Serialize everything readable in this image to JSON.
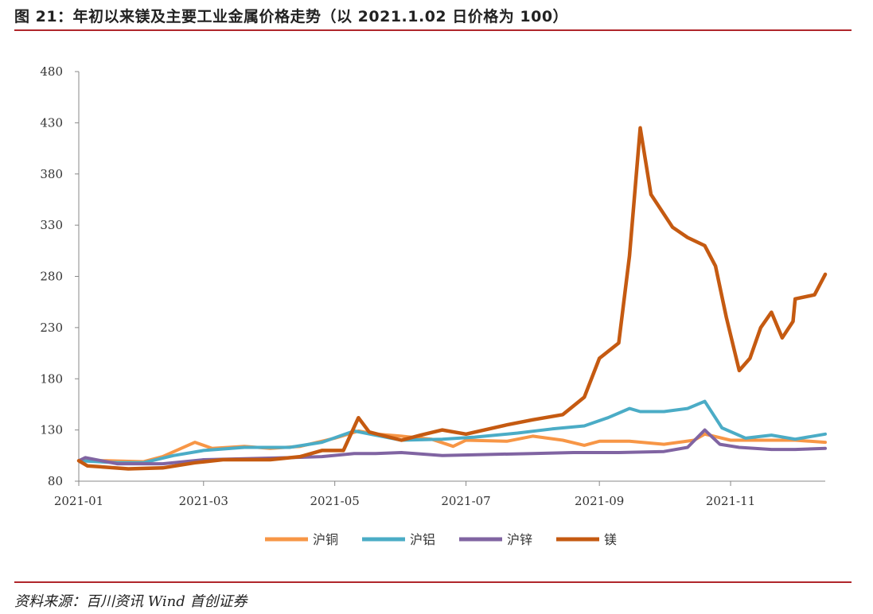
{
  "header": {
    "title": "图 21：年初以来镁及主要工业金属价格走势（以 2021.1.02 日价格为 100）"
  },
  "footer": {
    "source": "资料来源：百川资讯 Wind 首创证券"
  },
  "chart_data": {
    "type": "line",
    "title": "",
    "xlabel": "",
    "ylabel": "",
    "ylim": [
      80,
      480
    ],
    "yticks": [
      80,
      130,
      180,
      230,
      280,
      330,
      380,
      430,
      480
    ],
    "ytick_labels": [
      "80",
      "130",
      "180",
      "230",
      "280",
      "330",
      "380",
      "430",
      "480"
    ],
    "xlim": [
      "2021-01-02",
      "2021-12-15"
    ],
    "xticks": [
      "2021-01-02",
      "2021-03-01",
      "2021-05-01",
      "2021-07-01",
      "2021-09-01",
      "2021-11-01"
    ],
    "xtick_labels": [
      "2021-01",
      "2021-03",
      "2021-05",
      "2021-07",
      "2021-09",
      "2021-11"
    ],
    "legend_position": "bottom",
    "grid": false,
    "series": [
      {
        "name": "沪铜",
        "color": "#f79646",
        "points": [
          [
            "2021-01-02",
            100
          ],
          [
            "2021-01-15",
            100
          ],
          [
            "2021-02-01",
            99
          ],
          [
            "2021-02-10",
            104
          ],
          [
            "2021-02-25",
            118
          ],
          [
            "2021-03-05",
            112
          ],
          [
            "2021-03-20",
            114
          ],
          [
            "2021-04-01",
            112
          ],
          [
            "2021-04-15",
            114
          ],
          [
            "2021-05-01",
            122
          ],
          [
            "2021-05-12",
            129
          ],
          [
            "2021-05-20",
            126
          ],
          [
            "2021-06-01",
            124
          ],
          [
            "2021-06-15",
            121
          ],
          [
            "2021-06-25",
            114
          ],
          [
            "2021-07-01",
            120
          ],
          [
            "2021-07-20",
            119
          ],
          [
            "2021-08-01",
            124
          ],
          [
            "2021-08-15",
            120
          ],
          [
            "2021-08-25",
            115
          ],
          [
            "2021-09-01",
            119
          ],
          [
            "2021-09-15",
            119
          ],
          [
            "2021-10-01",
            116
          ],
          [
            "2021-10-15",
            120
          ],
          [
            "2021-10-20",
            126
          ],
          [
            "2021-11-01",
            120
          ],
          [
            "2021-11-15",
            120
          ],
          [
            "2021-12-01",
            120
          ],
          [
            "2021-12-15",
            118
          ]
        ]
      },
      {
        "name": "沪铝",
        "color": "#4bacc6",
        "points": [
          [
            "2021-01-02",
            100
          ],
          [
            "2021-01-20",
            98
          ],
          [
            "2021-02-01",
            98
          ],
          [
            "2021-02-15",
            105
          ],
          [
            "2021-03-01",
            110
          ],
          [
            "2021-03-20",
            113
          ],
          [
            "2021-04-10",
            113
          ],
          [
            "2021-04-25",
            118
          ],
          [
            "2021-05-10",
            129
          ],
          [
            "2021-05-20",
            125
          ],
          [
            "2021-06-01",
            120
          ],
          [
            "2021-06-20",
            121
          ],
          [
            "2021-07-05",
            123
          ],
          [
            "2021-07-25",
            127
          ],
          [
            "2021-08-10",
            131
          ],
          [
            "2021-08-25",
            134
          ],
          [
            "2021-09-05",
            142
          ],
          [
            "2021-09-15",
            151
          ],
          [
            "2021-09-20",
            148
          ],
          [
            "2021-10-01",
            148
          ],
          [
            "2021-10-12",
            151
          ],
          [
            "2021-10-20",
            158
          ],
          [
            "2021-10-28",
            132
          ],
          [
            "2021-11-08",
            122
          ],
          [
            "2021-11-20",
            125
          ],
          [
            "2021-12-01",
            121
          ],
          [
            "2021-12-15",
            126
          ]
        ]
      },
      {
        "name": "沪锌",
        "color": "#8064a2",
        "points": [
          [
            "2021-01-02",
            100
          ],
          [
            "2021-01-05",
            103
          ],
          [
            "2021-01-20",
            97
          ],
          [
            "2021-02-10",
            97
          ],
          [
            "2021-03-01",
            101
          ],
          [
            "2021-03-20",
            102
          ],
          [
            "2021-04-10",
            103
          ],
          [
            "2021-04-25",
            104
          ],
          [
            "2021-05-10",
            107
          ],
          [
            "2021-05-20",
            107
          ],
          [
            "2021-06-01",
            108
          ],
          [
            "2021-06-20",
            105
          ],
          [
            "2021-07-10",
            106
          ],
          [
            "2021-08-01",
            107
          ],
          [
            "2021-08-20",
            108
          ],
          [
            "2021-09-10",
            108
          ],
          [
            "2021-10-01",
            109
          ],
          [
            "2021-10-12",
            113
          ],
          [
            "2021-10-20",
            130
          ],
          [
            "2021-10-27",
            116
          ],
          [
            "2021-11-05",
            113
          ],
          [
            "2021-11-20",
            111
          ],
          [
            "2021-12-01",
            111
          ],
          [
            "2021-12-15",
            112
          ]
        ]
      },
      {
        "name": "镁",
        "color": "#c55a11",
        "points": [
          [
            "2021-01-02",
            100
          ],
          [
            "2021-01-06",
            95
          ],
          [
            "2021-01-25",
            92
          ],
          [
            "2021-02-10",
            93
          ],
          [
            "2021-02-25",
            98
          ],
          [
            "2021-03-10",
            101
          ],
          [
            "2021-04-01",
            101
          ],
          [
            "2021-04-15",
            104
          ],
          [
            "2021-04-25",
            110
          ],
          [
            "2021-05-05",
            110
          ],
          [
            "2021-05-12",
            142
          ],
          [
            "2021-05-17",
            128
          ],
          [
            "2021-06-01",
            120
          ],
          [
            "2021-06-10",
            125
          ],
          [
            "2021-06-20",
            130
          ],
          [
            "2021-07-01",
            126
          ],
          [
            "2021-07-20",
            135
          ],
          [
            "2021-08-01",
            140
          ],
          [
            "2021-08-15",
            145
          ],
          [
            "2021-08-25",
            162
          ],
          [
            "2021-09-01",
            200
          ],
          [
            "2021-09-10",
            215
          ],
          [
            "2021-09-15",
            300
          ],
          [
            "2021-09-20",
            425
          ],
          [
            "2021-09-25",
            360
          ],
          [
            "2021-10-05",
            328
          ],
          [
            "2021-10-12",
            318
          ],
          [
            "2021-10-20",
            310
          ],
          [
            "2021-10-25",
            290
          ],
          [
            "2021-10-30",
            240
          ],
          [
            "2021-11-05",
            188
          ],
          [
            "2021-11-10",
            200
          ],
          [
            "2021-11-15",
            230
          ],
          [
            "2021-11-20",
            245
          ],
          [
            "2021-11-25",
            220
          ],
          [
            "2021-11-30",
            236
          ],
          [
            "2021-12-01",
            258
          ],
          [
            "2021-12-10",
            262
          ],
          [
            "2021-12-15",
            282
          ]
        ]
      }
    ]
  }
}
